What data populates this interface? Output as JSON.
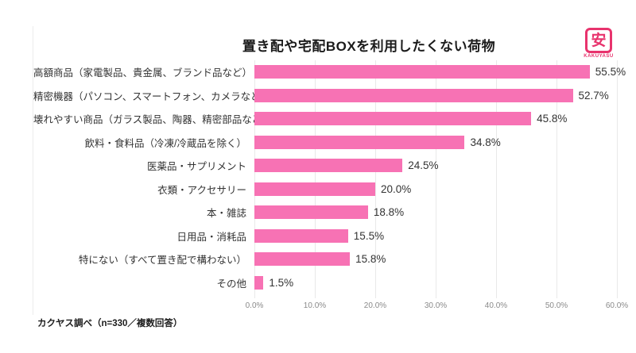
{
  "chart_data": {
    "type": "bar",
    "orientation": "horizontal",
    "title": "置き配や宅配BOXを利用したくない荷物",
    "categories": [
      "高額商品（家電製品、貴金属、ブランド品など）",
      "精密機器（パソコン、スマートフォン、カメラなど）",
      "壊れやすい商品（ガラス製品、陶器、精密部品など）",
      "飲料・食料品（冷凍/冷蔵品を除く）",
      "医薬品・サプリメント",
      "衣類・アクセサリー",
      "本・雑誌",
      "日用品・消耗品",
      "特にない（すべて置き配で構わない）",
      "その他"
    ],
    "values": [
      55.5,
      52.7,
      45.8,
      34.8,
      24.5,
      20.0,
      18.8,
      15.5,
      15.8,
      1.5
    ],
    "value_labels": [
      "55.5%",
      "52.7%",
      "45.8%",
      "34.8%",
      "24.5%",
      "20.0%",
      "18.8%",
      "15.5%",
      "15.8%",
      "1.5%"
    ],
    "xlim": [
      0,
      60
    ],
    "x_ticks": [
      "0.0%",
      "10.0%",
      "20.0%",
      "30.0%",
      "40.0%",
      "50.0%",
      "60.0%"
    ],
    "bar_color": "#f772b4",
    "grid": true,
    "legend": "none"
  },
  "footnote": "カクヤス調べ（n=330／複数回答）",
  "logo": {
    "kanji": "安",
    "brand_text": "KAKUYASU",
    "color": "#e8336d"
  }
}
